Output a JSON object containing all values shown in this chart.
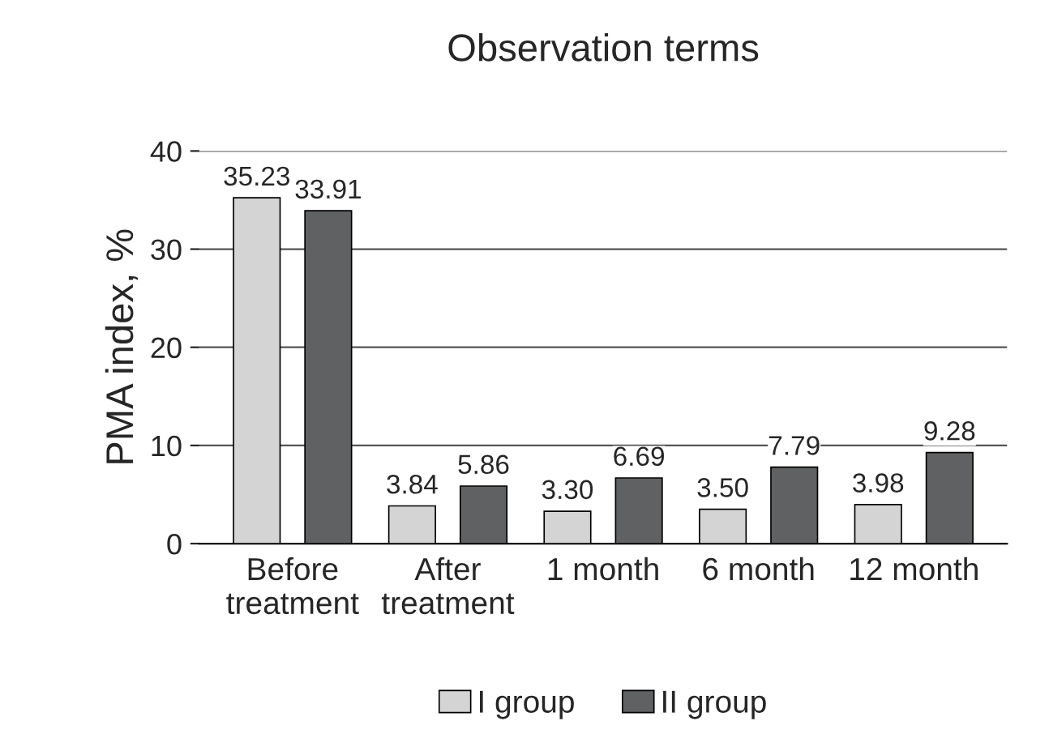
{
  "chart_data": {
    "type": "bar",
    "title": "Observation terms",
    "ylabel": "PMA index, %",
    "categories": [
      "Before\ntreatment",
      "After\ntreatment",
      "1 month",
      "6 month",
      "12 month"
    ],
    "series": [
      {
        "name": "I group",
        "color": "#d4d4d4",
        "values": [
          35.23,
          3.84,
          3.3,
          3.5,
          3.98
        ],
        "value_labels": [
          "35.23",
          "3.84",
          "3.30",
          "3.50",
          "3.98"
        ]
      },
      {
        "name": "II group",
        "color": "#606163",
        "values": [
          33.91,
          5.86,
          6.69,
          7.79,
          9.28
        ],
        "value_labels": [
          "33.91",
          "5.86",
          "6.69",
          "7.79",
          "9.28"
        ]
      }
    ],
    "ylim": [
      0,
      40
    ],
    "yticks": [
      0,
      10,
      20,
      30,
      40
    ],
    "grid": "y",
    "legend": "bottom"
  }
}
